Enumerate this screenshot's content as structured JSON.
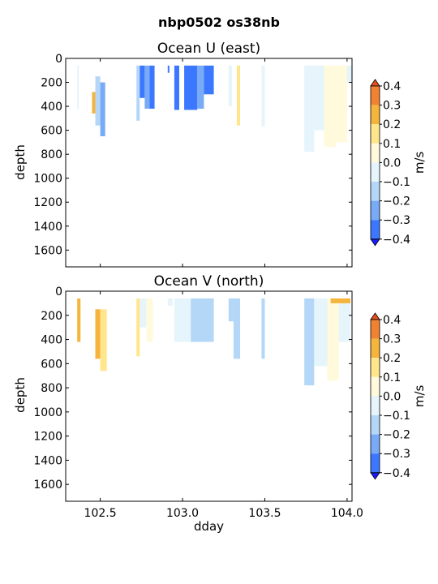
{
  "figure": {
    "title": "nbp0502 os38nb"
  },
  "chart_data": [
    {
      "type": "heatmap",
      "title": "Ocean U (east)",
      "xlabel": "",
      "ylabel": "depth",
      "xlim": [
        102.29,
        104.03
      ],
      "ylim": [
        1740,
        0
      ],
      "yticks": [
        0,
        200,
        400,
        600,
        800,
        1000,
        1200,
        1400,
        1600
      ],
      "xticks": [
        102.5,
        103.0,
        103.5,
        104.0
      ],
      "xticklabels": [
        "",
        "",
        "",
        ""
      ],
      "colorbar": {
        "label": "m/s",
        "ticks": [
          "0.4",
          "0.3",
          "0.2",
          "0.1",
          "0.0",
          "−0.1",
          "−0.2",
          "−0.3",
          "−0.4"
        ]
      },
      "columns": [
        {
          "x0": 102.36,
          "x1": 102.37,
          "ztop": 60,
          "zbot": 420,
          "v": -0.05
        },
        {
          "x0": 102.45,
          "x1": 102.47,
          "ztop": 280,
          "zbot": 460,
          "v": 0.2
        },
        {
          "x0": 102.47,
          "x1": 102.5,
          "ztop": 150,
          "zbot": 560,
          "v": -0.12
        },
        {
          "x0": 102.5,
          "x1": 102.53,
          "ztop": 200,
          "zbot": 650,
          "v": -0.22
        },
        {
          "x0": 102.72,
          "x1": 102.74,
          "ztop": 60,
          "zbot": 520,
          "v": -0.15
        },
        {
          "x0": 102.74,
          "x1": 102.77,
          "ztop": 60,
          "zbot": 330,
          "v": -0.38
        },
        {
          "x0": 102.77,
          "x1": 102.8,
          "ztop": 60,
          "zbot": 420,
          "v": -0.27
        },
        {
          "x0": 102.8,
          "x1": 102.83,
          "ztop": 60,
          "zbot": 420,
          "v": -0.38
        },
        {
          "x0": 102.91,
          "x1": 102.92,
          "ztop": 60,
          "zbot": 120,
          "v": -0.35
        },
        {
          "x0": 102.95,
          "x1": 102.98,
          "ztop": 60,
          "zbot": 430,
          "v": -0.32
        },
        {
          "x0": 103.01,
          "x1": 103.09,
          "ztop": 60,
          "zbot": 430,
          "v": -0.38
        },
        {
          "x0": 103.09,
          "x1": 103.13,
          "ztop": 60,
          "zbot": 420,
          "v": -0.28
        },
        {
          "x0": 103.13,
          "x1": 103.19,
          "ztop": 60,
          "zbot": 300,
          "v": -0.35
        },
        {
          "x0": 103.28,
          "x1": 103.3,
          "ztop": 60,
          "zbot": 400,
          "v": -0.08
        },
        {
          "x0": 103.33,
          "x1": 103.35,
          "ztop": 60,
          "zbot": 560,
          "v": 0.12
        },
        {
          "x0": 103.48,
          "x1": 103.5,
          "ztop": 60,
          "zbot": 570,
          "v": -0.08
        },
        {
          "x0": 103.74,
          "x1": 103.8,
          "ztop": 60,
          "zbot": 780,
          "v": -0.07
        },
        {
          "x0": 103.8,
          "x1": 103.86,
          "ztop": 60,
          "zbot": 600,
          "v": -0.04
        },
        {
          "x0": 103.86,
          "x1": 103.93,
          "ztop": 60,
          "zbot": 740,
          "v": 0.04
        },
        {
          "x0": 103.93,
          "x1": 104.0,
          "ztop": 60,
          "zbot": 700,
          "v": 0.03
        },
        {
          "x0": 104.0,
          "x1": 104.03,
          "ztop": 60,
          "zbot": 200,
          "v": -0.05
        }
      ]
    },
    {
      "type": "heatmap",
      "title": "Ocean V (north)",
      "xlabel": "dday",
      "ylabel": "depth",
      "xlim": [
        102.29,
        104.03
      ],
      "ylim": [
        1740,
        0
      ],
      "yticks": [
        0,
        200,
        400,
        600,
        800,
        1000,
        1200,
        1400,
        1600
      ],
      "xticks": [
        102.5,
        103.0,
        103.5,
        104.0
      ],
      "xticklabels": [
        "102.5",
        "103.0",
        "103.5",
        "104.0"
      ],
      "colorbar": {
        "label": "m/s",
        "ticks": [
          "0.4",
          "0.3",
          "0.2",
          "0.1",
          "0.0",
          "−0.1",
          "−0.2",
          "−0.3",
          "−0.4"
        ]
      },
      "columns": [
        {
          "x0": 102.36,
          "x1": 102.38,
          "ztop": 60,
          "zbot": 420,
          "v": 0.26
        },
        {
          "x0": 102.47,
          "x1": 102.5,
          "ztop": 150,
          "zbot": 560,
          "v": 0.27
        },
        {
          "x0": 102.5,
          "x1": 102.54,
          "ztop": 150,
          "zbot": 660,
          "v": 0.18
        },
        {
          "x0": 102.72,
          "x1": 102.74,
          "ztop": 60,
          "zbot": 540,
          "v": 0.15
        },
        {
          "x0": 102.74,
          "x1": 102.78,
          "ztop": 60,
          "zbot": 300,
          "v": -0.05
        },
        {
          "x0": 102.78,
          "x1": 102.82,
          "ztop": 60,
          "zbot": 420,
          "v": 0.02
        },
        {
          "x0": 102.91,
          "x1": 102.94,
          "ztop": 60,
          "zbot": 120,
          "v": -0.08
        },
        {
          "x0": 102.95,
          "x1": 103.05,
          "ztop": 60,
          "zbot": 420,
          "v": -0.06
        },
        {
          "x0": 103.05,
          "x1": 103.19,
          "ztop": 60,
          "zbot": 420,
          "v": -0.12
        },
        {
          "x0": 103.28,
          "x1": 103.31,
          "ztop": 60,
          "zbot": 250,
          "v": -0.15
        },
        {
          "x0": 103.31,
          "x1": 103.35,
          "ztop": 60,
          "zbot": 560,
          "v": -0.12
        },
        {
          "x0": 103.48,
          "x1": 103.5,
          "ztop": 60,
          "zbot": 560,
          "v": -0.18
        },
        {
          "x0": 103.74,
          "x1": 103.8,
          "ztop": 60,
          "zbot": 780,
          "v": -0.12
        },
        {
          "x0": 103.8,
          "x1": 103.88,
          "ztop": 60,
          "zbot": 620,
          "v": -0.06
        },
        {
          "x0": 103.88,
          "x1": 103.95,
          "ztop": 60,
          "zbot": 740,
          "v": 0.03
        },
        {
          "x0": 103.95,
          "x1": 104.02,
          "ztop": 60,
          "zbot": 420,
          "v": -0.08
        },
        {
          "x0": 103.9,
          "x1": 104.02,
          "ztop": 60,
          "zbot": 100,
          "v": 0.22
        }
      ]
    }
  ]
}
